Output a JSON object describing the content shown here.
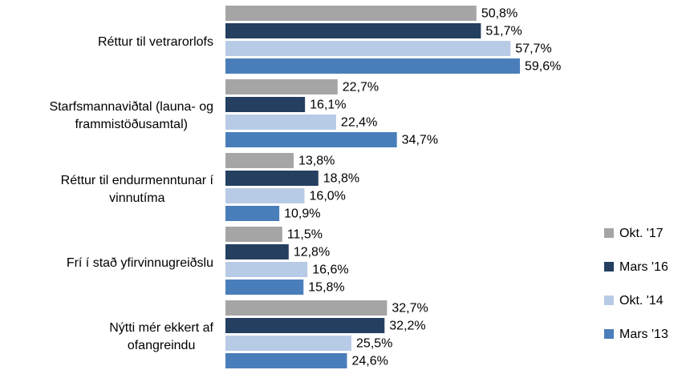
{
  "chart_data": {
    "type": "hbar",
    "categories": [
      "Réttur til vetrarorlofs",
      "Starfsmannaviðtal (launa- og\nframmistöðusamtal)",
      "Réttur til endurmenntunar í\nvinnutíma",
      "Frí í stað yfirvinnugreiðslu",
      "Nýtti mér ekkert af\nofangreindu"
    ],
    "series": [
      {
        "name": "Okt. '17",
        "color": "#a5a5a5",
        "values": [
          50.8,
          22.7,
          13.8,
          11.5,
          32.7
        ],
        "value_labels": [
          "50,8%",
          "22,7%",
          "13,8%",
          "11,5%",
          "32,7%"
        ]
      },
      {
        "name": "Mars '16",
        "color": "#243f60",
        "values": [
          51.7,
          16.1,
          18.8,
          12.8,
          32.2
        ],
        "value_labels": [
          "51,7%",
          "16,1%",
          "18,8%",
          "12,8%",
          "32,2%"
        ]
      },
      {
        "name": "Okt. '14",
        "color": "#b7cbe6",
        "values": [
          57.7,
          22.4,
          16.0,
          16.6,
          25.5
        ],
        "value_labels": [
          "57,7%",
          "22,4%",
          "16,0%",
          "16,6%",
          "25,5%"
        ]
      },
      {
        "name": "Mars '13",
        "color": "#4a7ebb",
        "values": [
          59.6,
          34.7,
          10.9,
          15.8,
          24.6
        ],
        "value_labels": [
          "59,6%",
          "34,7%",
          "10,9%",
          "15,8%",
          "24,6%"
        ]
      }
    ],
    "xlim": [
      0,
      95
    ],
    "legend": "right"
  }
}
